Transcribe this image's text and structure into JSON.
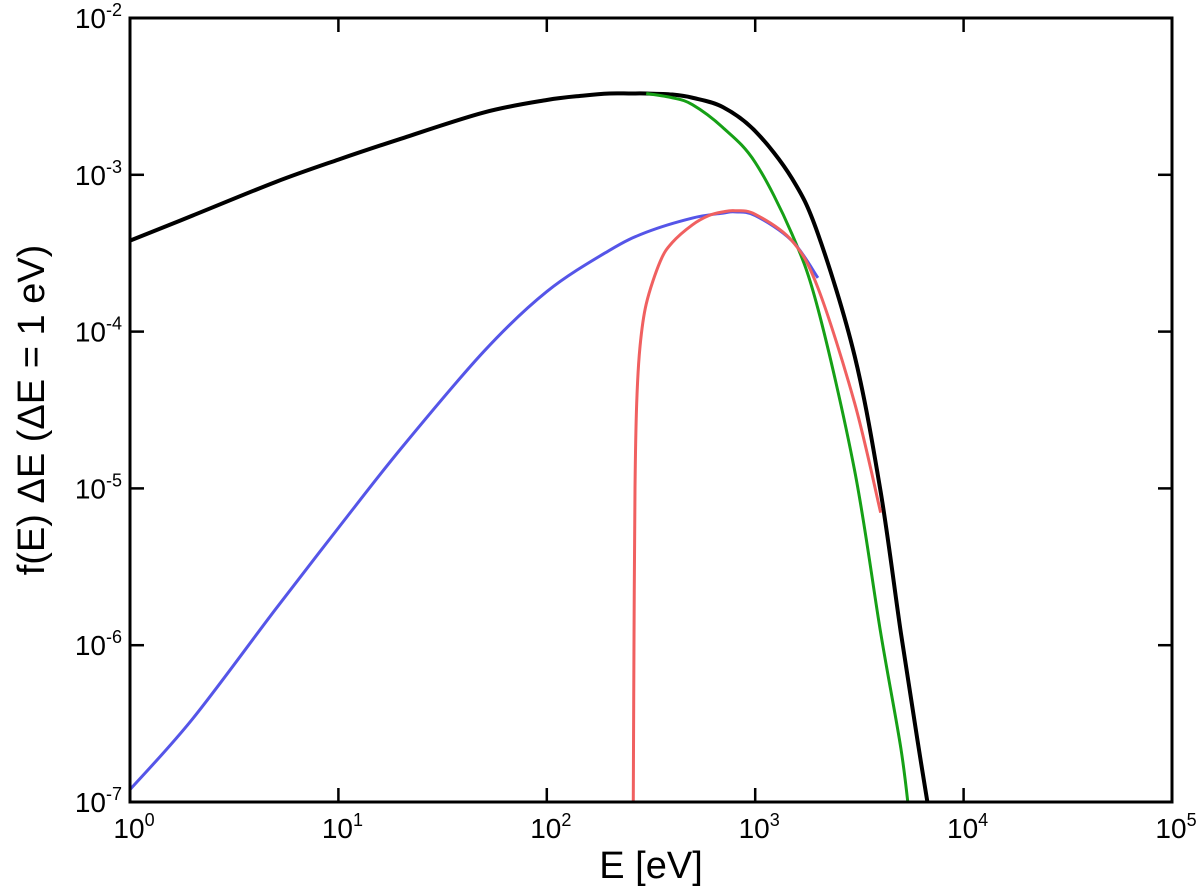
{
  "chart_data": {
    "type": "line",
    "title": "",
    "xlabel": "E [eV]",
    "ylabel": "f(E) ΔE   (ΔE = 1 eV)",
    "xscale": "log",
    "yscale": "log",
    "xlim": [
      1,
      100000
    ],
    "ylim": [
      1e-07,
      0.01
    ],
    "grid": false,
    "x_tick_labels": [
      {
        "base": "10",
        "exp": "0"
      },
      {
        "base": "10",
        "exp": "1"
      },
      {
        "base": "10",
        "exp": "2"
      },
      {
        "base": "10",
        "exp": "3"
      },
      {
        "base": "10",
        "exp": "4"
      },
      {
        "base": "10",
        "exp": "5"
      }
    ],
    "y_tick_labels": [
      {
        "base": "10",
        "exp": "-7"
      },
      {
        "base": "10",
        "exp": "-6"
      },
      {
        "base": "10",
        "exp": "-5"
      },
      {
        "base": "10",
        "exp": "-4"
      },
      {
        "base": "10",
        "exp": "-3"
      },
      {
        "base": "10",
        "exp": "-2"
      }
    ],
    "series": [
      {
        "color": "#000000",
        "x": [
          1,
          2,
          5,
          10,
          20,
          50,
          100,
          150,
          200,
          250,
          300,
          400,
          500,
          700,
          1000,
          1500,
          2000,
          3000,
          4000,
          5000,
          6000,
          7000
        ],
        "y": [
          0.00038,
          0.00055,
          0.0009,
          0.00125,
          0.0017,
          0.0025,
          0.003,
          0.0032,
          0.0033,
          0.0033,
          0.0033,
          0.00325,
          0.0031,
          0.0027,
          0.0019,
          0.00095,
          0.00042,
          7e-05,
          9.5e-06,
          1.2e-06,
          2.5e-07,
          7e-08
        ]
      },
      {
        "color": "#16a016",
        "x": [
          300,
          400,
          500,
          700,
          1000,
          1500,
          2000,
          3000,
          4000,
          5000,
          5500
        ],
        "y": [
          0.0033,
          0.0031,
          0.0028,
          0.002,
          0.0012,
          0.00042,
          0.00014,
          1.3e-05,
          1.2e-06,
          2.2e-07,
          8e-08
        ]
      },
      {
        "color": "#5555e8",
        "x": [
          1,
          2,
          5,
          10,
          20,
          50,
          100,
          200,
          300,
          500,
          700,
          800,
          1000,
          1500,
          2000
        ],
        "y": [
          1.2e-07,
          3.4e-07,
          1.7e-06,
          5.6e-06,
          1.8e-05,
          7.5e-05,
          0.00018,
          0.00033,
          0.00043,
          0.00053,
          0.00057,
          0.00058,
          0.00055,
          0.00038,
          0.00022
        ]
      },
      {
        "color": "#f06060",
        "x": [
          260,
          262,
          265,
          270,
          280,
          300,
          350,
          400,
          500,
          600,
          700,
          800,
          1000,
          1500,
          2000,
          3000,
          4000
        ],
        "y": [
          1e-07,
          1e-06,
          1e-05,
          3.5e-05,
          8e-05,
          0.00015,
          0.00028,
          0.00037,
          0.00048,
          0.00055,
          0.00058,
          0.00059,
          0.00056,
          0.00038,
          0.00019,
          3.5e-05,
          7e-06
        ]
      }
    ]
  }
}
